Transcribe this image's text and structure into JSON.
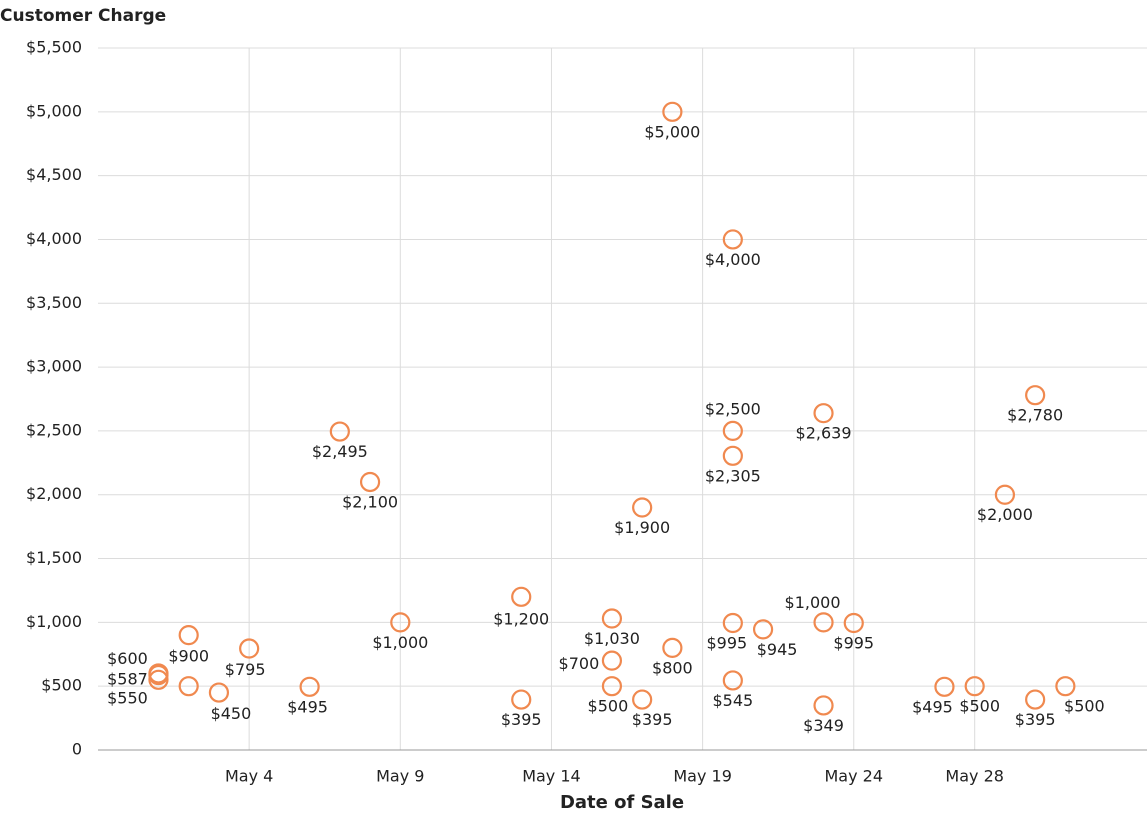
{
  "chart_data": {
    "type": "scatter",
    "title": "Customer Charge",
    "x_label": "Date of Sale",
    "x": [
      1,
      1,
      1,
      2,
      2,
      3,
      4,
      6,
      7,
      8,
      9,
      13,
      13,
      16,
      16,
      16,
      17,
      17,
      18,
      18,
      20,
      20,
      20,
      20,
      20,
      21,
      23,
      23,
      23,
      24,
      27,
      28,
      29,
      30,
      30,
      31
    ],
    "values": [
      600,
      587,
      550,
      900,
      500,
      450,
      795,
      495,
      2495,
      2100,
      1000,
      1200,
      395,
      1030,
      700,
      500,
      1900,
      395,
      5000,
      800,
      4000,
      2500,
      2305,
      995,
      545,
      945,
      2639,
      1000,
      349,
      995,
      495,
      500,
      2000,
      2780,
      395,
      500
    ],
    "value_labels": [
      "$600",
      "$587",
      "$550",
      "$900",
      null,
      "$450",
      "$795",
      "$495",
      "$2,495",
      "$2,100",
      "$1,000",
      "$1,200",
      "$395",
      "$1,030",
      "$700",
      "$500",
      "$1,900",
      "$395",
      "$5,000",
      "$800",
      "$4,000",
      "$2,500",
      "$2,305",
      "$995",
      "$545",
      "$945",
      "$2,639",
      "$1,000",
      "$349",
      "$995",
      "$495",
      "$500",
      "$2,000",
      "$2,780",
      "$395",
      "$500"
    ],
    "color": "#f0894f",
    "xlim": [
      -1,
      33.7
    ],
    "xticks": [
      {
        "value": 4,
        "label": "May 4"
      },
      {
        "value": 9,
        "label": "May 9"
      },
      {
        "value": 14,
        "label": "May 14"
      },
      {
        "value": 19,
        "label": "May 19"
      },
      {
        "value": 24,
        "label": "May 24"
      },
      {
        "value": 28,
        "label": "May 28"
      }
    ],
    "ylim": [
      0,
      5500
    ],
    "yticks": [
      0,
      {
        "value": 500,
        "label": "$500"
      },
      {
        "value": 1000,
        "label": "$1,000"
      },
      {
        "value": 1500,
        "label": "$1,500"
      },
      {
        "value": 2000,
        "label": "$2,000"
      },
      {
        "value": 2500,
        "label": "$2,500"
      },
      {
        "value": 3000,
        "label": "$3,000"
      },
      {
        "value": 3500,
        "label": "$3,500"
      },
      {
        "value": 4000,
        "label": "$4,000"
      },
      {
        "value": 4500,
        "label": "$4,500"
      },
      {
        "value": 5000,
        "label": "$5,000"
      },
      {
        "value": 5500,
        "label": "$5,500"
      }
    ],
    "grid": true
  }
}
